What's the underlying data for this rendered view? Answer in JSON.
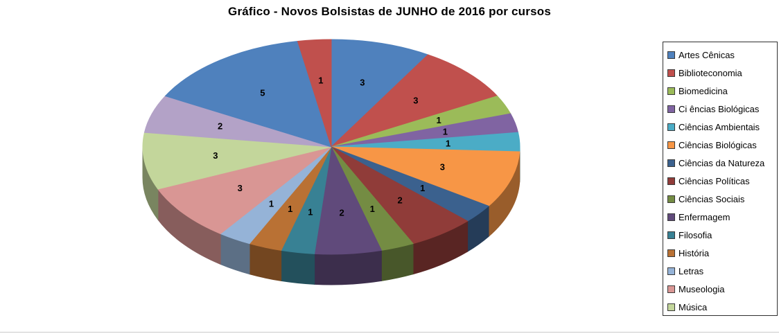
{
  "page": {
    "background": "#ffffff"
  },
  "chart_data": {
    "type": "pie",
    "title": "Gráfico - Novos Bolsistas de JUNHO de 2016 por cursos",
    "effect": "3d",
    "direction": "clockwise",
    "start_angle_deg": 0,
    "legend_position": "right",
    "data_labels": "value",
    "legend": [
      {
        "label": "Artes Cênicas",
        "color": "#4F81BD"
      },
      {
        "label": "Biblioteconomia",
        "color": "#C0504D"
      },
      {
        "label": "Biomedicina",
        "color": "#9BBB59"
      },
      {
        "label": "Ci ências Biológicas",
        "color": "#8064A2"
      },
      {
        "label": "Ciências Ambientais",
        "color": "#4BACC6"
      },
      {
        "label": "Ciências Biológicas",
        "color": "#F79646"
      },
      {
        "label": "Ciências da Natureza",
        "color": "#3B618E"
      },
      {
        "label": "Ciências Políticas",
        "color": "#903C39"
      },
      {
        "label": "Ciências Sociais",
        "color": "#748C43"
      },
      {
        "label": "Enfermagem",
        "color": "#604A7B"
      },
      {
        "label": "Filosofia",
        "color": "#388194"
      },
      {
        "label": "História",
        "color": "#B97134"
      },
      {
        "label": "Letras",
        "color": "#95B3D7"
      },
      {
        "label": "Museologia",
        "color": "#D99694"
      },
      {
        "label": "Música",
        "color": "#C3D69B"
      }
    ],
    "slices": [
      {
        "category": "Artes Cênicas",
        "value": 3,
        "color": "#4F81BD"
      },
      {
        "category": "Biblioteconomia",
        "value": 3,
        "color": "#C0504D"
      },
      {
        "category": "Biomedicina",
        "value": 1,
        "color": "#9BBB59"
      },
      {
        "category": "Ci ências Biológicas",
        "value": 1,
        "color": "#8064A2"
      },
      {
        "category": "Ciências Ambientais",
        "value": 1,
        "color": "#4BACC6"
      },
      {
        "category": "Ciências Biológicas",
        "value": 3,
        "color": "#F79646"
      },
      {
        "category": "Ciências da Natureza",
        "value": 1,
        "color": "#3B618E"
      },
      {
        "category": "Ciências Políticas",
        "value": 2,
        "color": "#903C39"
      },
      {
        "category": "Ciências Sociais",
        "value": 1,
        "color": "#748C43"
      },
      {
        "category": "Enfermagem",
        "value": 2,
        "color": "#604A7B"
      },
      {
        "category": "Filosofia",
        "value": 1,
        "color": "#388194"
      },
      {
        "category": "História",
        "value": 1,
        "color": "#B97134"
      },
      {
        "category": "Letras",
        "value": 1,
        "color": "#95B3D7"
      },
      {
        "category": "Museologia",
        "value": 3,
        "color": "#D99694"
      },
      {
        "category": "Música",
        "value": 3,
        "color": "#C3D69B"
      },
      {
        "category": "",
        "value": 2,
        "color": "#B3A2C7"
      },
      {
        "category": "",
        "value": 5,
        "color": "#4F81BD"
      },
      {
        "category": "",
        "value": 1,
        "color": "#C0504D"
      }
    ]
  }
}
